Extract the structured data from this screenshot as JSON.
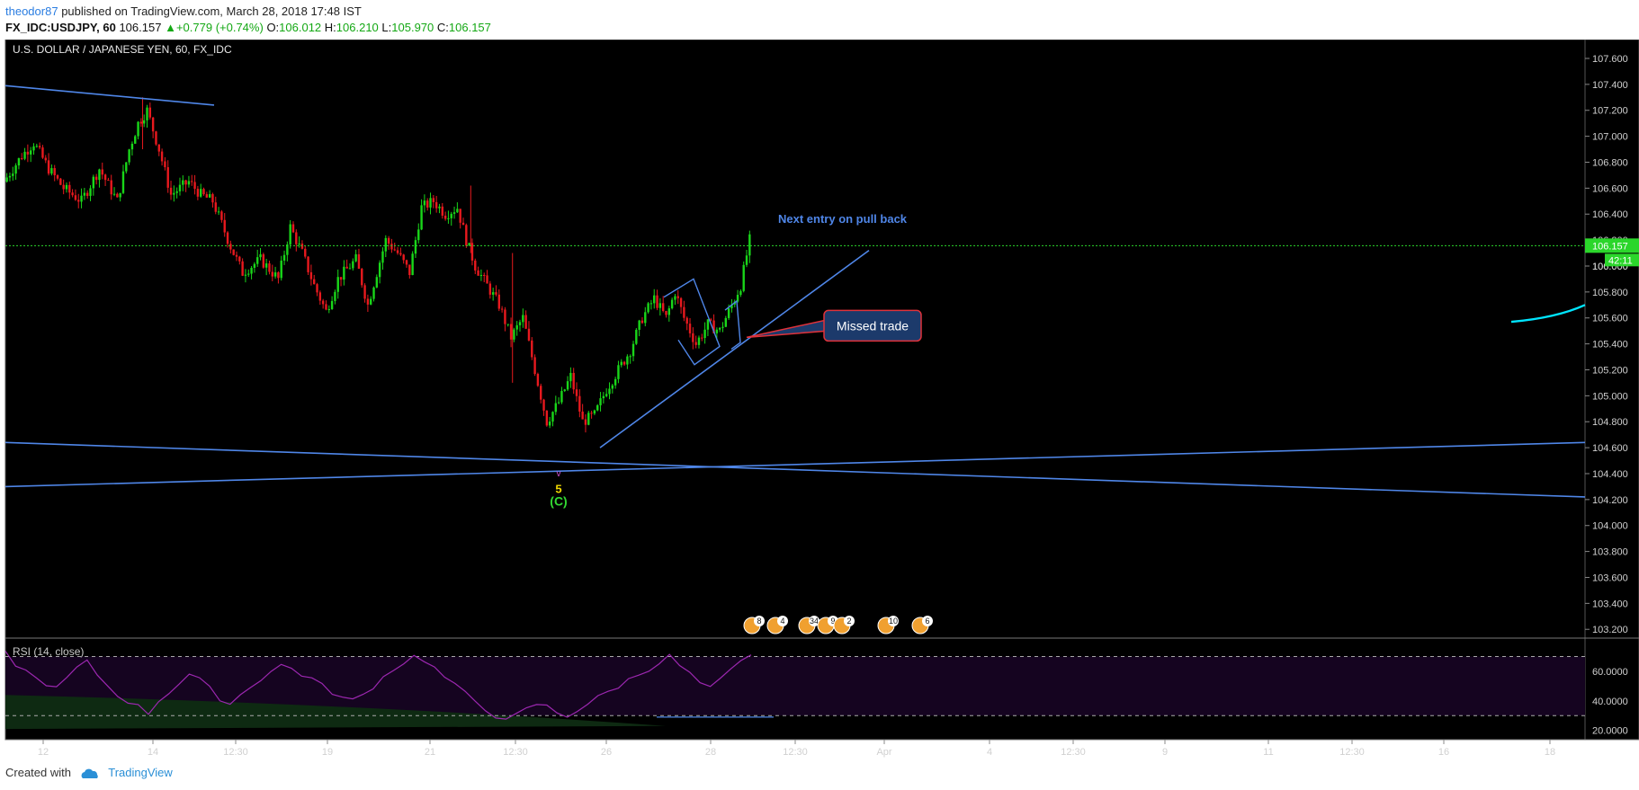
{
  "header": {
    "author": "theodor87",
    "published_text": "published on TradingView.com, March 28, 2018 17:48 IST",
    "symbol": "FX_IDC:USDJPY, 60",
    "last": "106.157",
    "change_arrow": "▲",
    "change": "+0.779 (+0.74%)",
    "open_label": "O:",
    "open": "106.012",
    "high_label": "H:",
    "high": "106.210",
    "low_label": "L:",
    "low": "105.970",
    "close_label": "C:",
    "close": "106.157"
  },
  "footer": {
    "created_with": "Created with",
    "brand": "TradingView"
  },
  "colors": {
    "background": "#000000",
    "up_candle": "#19d619",
    "down_candle": "#e8191e",
    "trendline": "#4f86e8",
    "rsi_line": "#9c27b0",
    "price_tag": "#2bd62b",
    "callout_fill": "#1c3a6b",
    "callout_border": "#e0323a",
    "wave_pink": "#d14fd1",
    "wave_yellow": "#f0d800",
    "wave_green": "#32d932",
    "cyan_curve": "#00e5ff"
  },
  "chart_data": {
    "type": "candlestick",
    "title": "U.S. DOLLAR / JAPANESE YEN, 60, FX_IDC",
    "y_ticks": [
      "107.600",
      "107.400",
      "107.200",
      "107.000",
      "106.800",
      "106.600",
      "106.400",
      "106.200",
      "106.000",
      "105.800",
      "105.600",
      "105.400",
      "105.200",
      "105.000",
      "104.800",
      "104.600",
      "104.400",
      "104.200",
      "104.000",
      "103.800",
      "103.600",
      "103.400",
      "103.200"
    ],
    "ylim": [
      103.16,
      107.69
    ],
    "x_ticks": [
      "12",
      "14",
      "12:30",
      "19",
      "21",
      "12:30",
      "26",
      "28",
      "12:30",
      "Apr",
      "4",
      "12:30",
      "9",
      "11",
      "12:30",
      "16",
      "18"
    ],
    "last_price_label": "106.157",
    "countdown_label": "42:11",
    "hidden_label": "106.000",
    "current_price": 106.157,
    "price_path": [
      [
        0,
        106.65
      ],
      [
        6,
        106.85
      ],
      [
        10,
        106.95
      ],
      [
        15,
        106.75
      ],
      [
        20,
        106.6
      ],
      [
        26,
        106.5
      ],
      [
        32,
        106.75
      ],
      [
        38,
        106.5
      ],
      [
        42,
        106.9
      ],
      [
        45,
        107.1
      ],
      [
        48,
        107.2
      ],
      [
        52,
        106.9
      ],
      [
        56,
        106.55
      ],
      [
        62,
        106.65
      ],
      [
        66,
        106.55
      ],
      [
        70,
        106.5
      ],
      [
        76,
        106.15
      ],
      [
        80,
        105.95
      ],
      [
        86,
        106.05
      ],
      [
        92,
        105.9
      ],
      [
        96,
        106.3
      ],
      [
        100,
        106.1
      ],
      [
        104,
        105.85
      ],
      [
        108,
        105.65
      ],
      [
        112,
        105.9
      ],
      [
        118,
        106.05
      ],
      [
        122,
        105.7
      ],
      [
        128,
        106.2
      ],
      [
        132,
        106.1
      ],
      [
        136,
        105.95
      ],
      [
        140,
        106.45
      ],
      [
        144,
        106.5
      ],
      [
        148,
        106.4
      ],
      [
        152,
        106.45
      ],
      [
        155,
        106.2
      ],
      [
        158,
        106.0
      ],
      [
        162,
        105.85
      ],
      [
        166,
        105.7
      ],
      [
        170,
        105.45
      ],
      [
        174,
        105.6
      ],
      [
        178,
        105.2
      ],
      [
        182,
        104.8
      ],
      [
        186,
        104.95
      ],
      [
        190,
        105.15
      ],
      [
        194,
        104.8
      ],
      [
        198,
        104.85
      ],
      [
        202,
        105.05
      ],
      [
        206,
        105.2
      ],
      [
        210,
        105.35
      ],
      [
        214,
        105.6
      ],
      [
        218,
        105.75
      ],
      [
        222,
        105.6
      ],
      [
        225,
        105.8
      ],
      [
        228,
        105.6
      ],
      [
        232,
        105.4
      ],
      [
        236,
        105.55
      ],
      [
        240,
        105.5
      ],
      [
        244,
        105.7
      ],
      [
        247,
        105.85
      ],
      [
        250,
        106.2
      ]
    ],
    "price_range": {
      "start_date": "Mar 12",
      "end_date": "Mar 28"
    },
    "rsi": {
      "label": "RSI (14, close)",
      "y_ticks": [
        "60.0000",
        "40.0000",
        "20.0000"
      ],
      "ylim": [
        18,
        80
      ],
      "upper_band": 70,
      "lower_band": 30,
      "values": [
        72,
        65,
        60,
        55,
        52,
        48,
        55,
        62,
        66,
        58,
        50,
        44,
        40,
        36,
        32,
        40,
        46,
        52,
        58,
        54,
        48,
        42,
        38,
        44,
        50,
        55,
        60,
        64,
        62,
        58,
        55,
        50,
        46,
        42,
        40,
        44,
        50,
        56,
        62,
        66,
        70,
        68,
        62,
        56,
        50,
        45,
        40,
        35,
        30,
        26,
        30,
        34,
        38,
        36,
        32,
        30,
        34,
        38,
        42,
        46,
        50,
        54,
        58,
        62,
        66,
        70,
        64,
        58,
        52,
        48,
        54,
        60,
        66,
        70
      ]
    },
    "trendlines": [
      {
        "from": {
          "x": "Mar 12",
          "y": 107.39
        },
        "to": {
          "x": "Mar 14",
          "y": 107.24
        }
      },
      {
        "from": {
          "x": "Mar 12",
          "y": 104.64
        },
        "to": {
          "x": "Mar 18",
          "y": 104.22
        }
      },
      {
        "from": {
          "x": "Mar 12",
          "y": 104.3
        },
        "to": {
          "x": "Mar 18",
          "y": 104.64
        }
      },
      {
        "from": {
          "x": "Mar 26",
          "y": 104.6
        },
        "to": {
          "x": "Mar 29",
          "y": 106.12
        }
      }
    ],
    "annotations": {
      "next_entry": "Next entry on pull back",
      "missed_trade": "Missed trade",
      "wave_v": "v",
      "wave_5": "5",
      "wave_c": "(C)"
    },
    "event_badges": [
      "8",
      "4",
      "34",
      "9",
      "2",
      "10",
      "6"
    ]
  }
}
